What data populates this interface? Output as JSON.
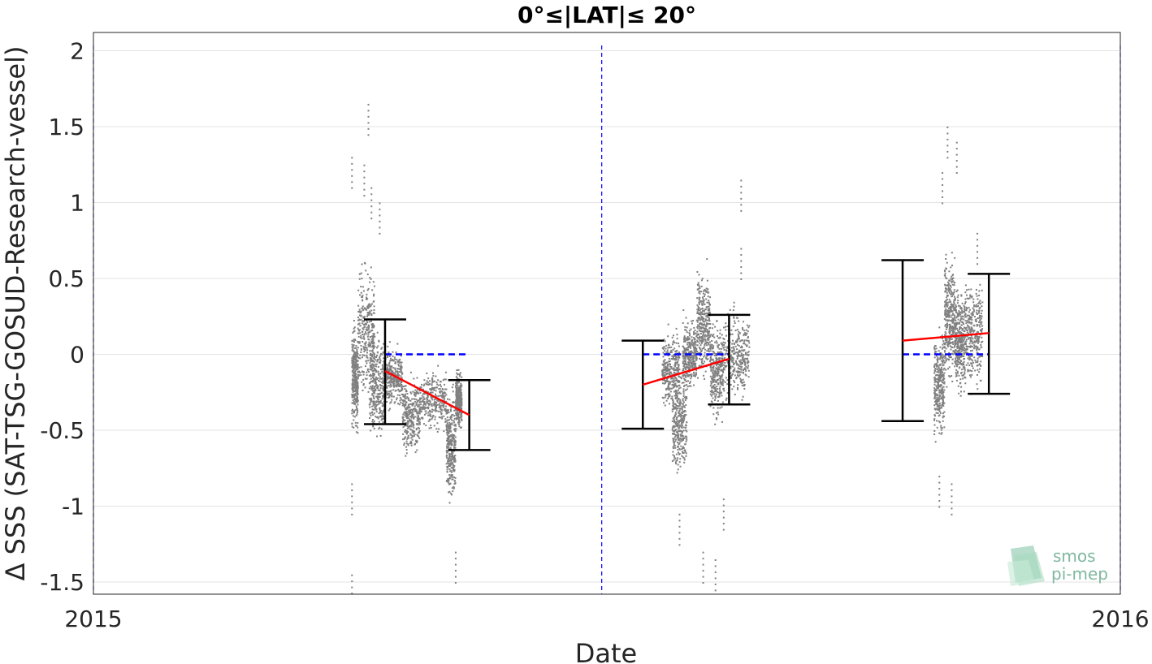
{
  "chart_data": {
    "type": "scatter",
    "title": "0°≤|LAT|≤ 20°",
    "xlabel": "Date",
    "ylabel": "Δ SSS (SAT-TSG-GOSUD-Research-vessel)",
    "xlim": [
      "2015",
      "2016"
    ],
    "ylim": [
      -1.58,
      2.12
    ],
    "y_ticks": [
      "2",
      "1.5",
      "1",
      "0.5",
      "0",
      "-0.5",
      "-1",
      "-1.5"
    ],
    "y_tick_values": [
      2,
      1.5,
      1,
      0.5,
      0,
      -0.5,
      -1,
      -1.5
    ],
    "x_ticks": [
      "2015",
      "2016"
    ],
    "grid": true,
    "vertical_reference_lines": [
      0.0,
      0.495,
      1.0
    ],
    "colors": {
      "scatter": "#808080",
      "trend": "#ff0000",
      "zero_line": "#0000ff",
      "errorbar": "#000000",
      "reference": "#0000ff"
    },
    "clusters": [
      {
        "name": "cluster-1",
        "x_range": [
          0.25,
          0.36
        ],
        "segments": [
          {
            "x": [
              0.251,
              0.257
            ],
            "center": -0.15,
            "spread": 0.35
          },
          {
            "x": [
              0.257,
              0.273
            ],
            "center": 0.15,
            "spread": 0.45
          },
          {
            "x": [
              0.268,
              0.283
            ],
            "center": -0.2,
            "spread": 0.35
          },
          {
            "x": [
              0.283,
              0.3
            ],
            "center": -0.15,
            "spread": 0.2
          },
          {
            "x": [
              0.3,
              0.317
            ],
            "center": -0.4,
            "spread": 0.25
          },
          {
            "x": [
              0.317,
              0.343
            ],
            "center": -0.3,
            "spread": 0.2
          },
          {
            "x": [
              0.343,
              0.352
            ],
            "center": -0.6,
            "spread": 0.35
          },
          {
            "x": [
              0.352,
              0.358
            ],
            "center": -0.3,
            "spread": 0.2
          }
        ],
        "outliers": [
          [
            0.251,
            1.3
          ],
          [
            0.263,
            1.25
          ],
          [
            0.267,
            1.65
          ],
          [
            0.27,
            1.1
          ],
          [
            0.251,
            -1.45
          ],
          [
            0.251,
            -0.85
          ],
          [
            0.278,
            1.0
          ],
          [
            0.352,
            -1.3
          ]
        ],
        "trend": {
          "x": [
            0.284,
            0.366
          ],
          "y": [
            -0.11,
            -0.4
          ]
        },
        "errorbars": [
          {
            "x": 0.284,
            "low": -0.46,
            "high": 0.23
          },
          {
            "x": 0.366,
            "low": -0.63,
            "high": -0.17
          }
        ],
        "zero_segment": [
          0.284,
          0.366
        ]
      },
      {
        "name": "cluster-2",
        "x_range": [
          0.55,
          0.64
        ],
        "segments": [
          {
            "x": [
              0.553,
              0.57
            ],
            "center": -0.1,
            "spread": 0.25
          },
          {
            "x": [
              0.563,
              0.577
            ],
            "center": -0.45,
            "spread": 0.35
          },
          {
            "x": [
              0.573,
              0.587
            ],
            "center": 0.0,
            "spread": 0.25
          },
          {
            "x": [
              0.587,
              0.6
            ],
            "center": 0.2,
            "spread": 0.35
          },
          {
            "x": [
              0.6,
              0.613
            ],
            "center": -0.1,
            "spread": 0.35
          },
          {
            "x": [
              0.613,
              0.638
            ],
            "center": 0.0,
            "spread": 0.3
          }
        ],
        "outliers": [
          [
            0.593,
            -1.3
          ],
          [
            0.605,
            -1.35
          ],
          [
            0.613,
            -0.95
          ],
          [
            0.63,
            1.15
          ],
          [
            0.63,
            0.7
          ],
          [
            0.57,
            -1.05
          ]
        ],
        "trend": {
          "x": [
            0.535,
            0.619
          ],
          "y": [
            -0.2,
            -0.03
          ]
        },
        "errorbars": [
          {
            "x": 0.535,
            "low": -0.49,
            "high": 0.09
          },
          {
            "x": 0.619,
            "low": -0.33,
            "high": 0.26
          }
        ],
        "zero_segment": [
          0.535,
          0.619
        ]
      },
      {
        "name": "cluster-3",
        "x_range": [
          0.82,
          0.87
        ],
        "segments": [
          {
            "x": [
              0.818,
              0.828
            ],
            "center": -0.2,
            "spread": 0.35
          },
          {
            "x": [
              0.828,
              0.838
            ],
            "center": 0.25,
            "spread": 0.45
          },
          {
            "x": [
              0.838,
              0.848
            ],
            "center": 0.1,
            "spread": 0.35
          },
          {
            "x": [
              0.848,
              0.865
            ],
            "center": 0.15,
            "spread": 0.35
          }
        ],
        "outliers": [
          [
            0.831,
            1.5
          ],
          [
            0.826,
            1.2
          ],
          [
            0.84,
            1.4
          ],
          [
            0.823,
            -0.8
          ],
          [
            0.835,
            -0.85
          ],
          [
            0.86,
            0.8
          ]
        ],
        "trend": {
          "x": [
            0.788,
            0.872
          ],
          "y": [
            0.09,
            0.14
          ]
        },
        "errorbars": [
          {
            "x": 0.788,
            "low": -0.44,
            "high": 0.62
          },
          {
            "x": 0.872,
            "low": -0.26,
            "high": 0.53
          }
        ],
        "zero_segment": [
          0.788,
          0.872
        ]
      }
    ]
  },
  "logo": {
    "line1": "smos",
    "line2": "pi-mep"
  }
}
